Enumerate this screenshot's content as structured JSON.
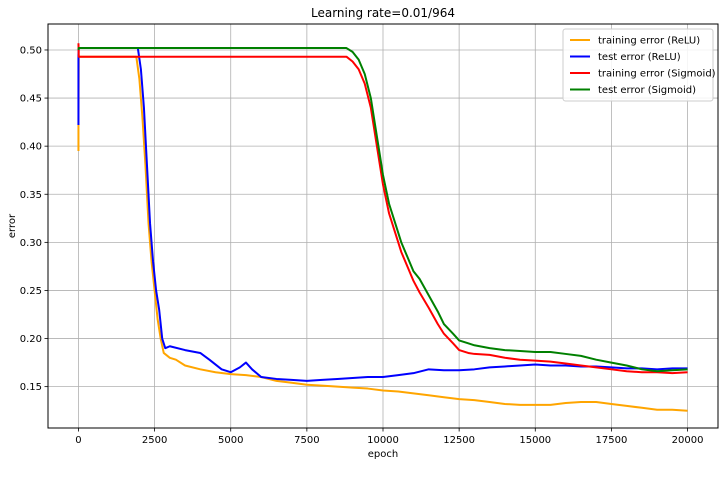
{
  "chart_data": {
    "type": "line",
    "title": "Learning rate=0.01/964",
    "xlabel": "epoch",
    "ylabel": "error",
    "xlim": [
      -1000,
      21000
    ],
    "ylim": [
      0.107,
      0.527
    ],
    "x_ticks": [
      0,
      2500,
      5000,
      7500,
      10000,
      12500,
      15000,
      17500,
      20000
    ],
    "y_ticks": [
      0.15,
      0.2,
      0.25,
      0.3,
      0.35,
      0.4,
      0.45,
      0.5
    ],
    "grid": true,
    "legend_position": "top-right",
    "series": [
      {
        "name": "training error (ReLU)",
        "color": "#ffa500",
        "points": [
          [
            0,
            0.395
          ],
          [
            0,
            0.42
          ],
          [
            10,
            0.493
          ],
          [
            1900,
            0.493
          ],
          [
            2000,
            0.47
          ],
          [
            2100,
            0.43
          ],
          [
            2200,
            0.38
          ],
          [
            2300,
            0.32
          ],
          [
            2400,
            0.28
          ],
          [
            2500,
            0.25
          ],
          [
            2600,
            0.22
          ],
          [
            2700,
            0.2
          ],
          [
            2800,
            0.185
          ],
          [
            3000,
            0.18
          ],
          [
            3200,
            0.178
          ],
          [
            3500,
            0.172
          ],
          [
            4000,
            0.168
          ],
          [
            4500,
            0.165
          ],
          [
            5000,
            0.163
          ],
          [
            5500,
            0.162
          ],
          [
            6000,
            0.16
          ],
          [
            6500,
            0.156
          ],
          [
            7000,
            0.154
          ],
          [
            7500,
            0.152
          ],
          [
            8000,
            0.151
          ],
          [
            8500,
            0.15
          ],
          [
            9000,
            0.149
          ],
          [
            9500,
            0.148
          ],
          [
            10000,
            0.146
          ],
          [
            10500,
            0.145
          ],
          [
            11000,
            0.143
          ],
          [
            11500,
            0.141
          ],
          [
            12000,
            0.139
          ],
          [
            12500,
            0.137
          ],
          [
            13000,
            0.136
          ],
          [
            13500,
            0.134
          ],
          [
            14000,
            0.132
          ],
          [
            14500,
            0.131
          ],
          [
            15000,
            0.131
          ],
          [
            15500,
            0.131
          ],
          [
            16000,
            0.133
          ],
          [
            16500,
            0.134
          ],
          [
            17000,
            0.134
          ],
          [
            17500,
            0.132
          ],
          [
            18000,
            0.13
          ],
          [
            18500,
            0.128
          ],
          [
            19000,
            0.126
          ],
          [
            19500,
            0.126
          ],
          [
            20000,
            0.125
          ]
        ]
      },
      {
        "name": "test error (ReLU)",
        "color": "#0000ff",
        "points": [
          [
            0,
            0.422
          ],
          [
            0,
            0.495
          ],
          [
            10,
            0.502
          ],
          [
            1950,
            0.502
          ],
          [
            2050,
            0.48
          ],
          [
            2150,
            0.44
          ],
          [
            2250,
            0.38
          ],
          [
            2350,
            0.32
          ],
          [
            2450,
            0.28
          ],
          [
            2550,
            0.25
          ],
          [
            2650,
            0.23
          ],
          [
            2750,
            0.2
          ],
          [
            2850,
            0.19
          ],
          [
            3000,
            0.192
          ],
          [
            3500,
            0.188
          ],
          [
            4000,
            0.185
          ],
          [
            4300,
            0.178
          ],
          [
            4700,
            0.168
          ],
          [
            5000,
            0.165
          ],
          [
            5300,
            0.17
          ],
          [
            5500,
            0.175
          ],
          [
            5700,
            0.168
          ],
          [
            6000,
            0.16
          ],
          [
            6500,
            0.158
          ],
          [
            7000,
            0.157
          ],
          [
            7500,
            0.156
          ],
          [
            8000,
            0.157
          ],
          [
            8500,
            0.158
          ],
          [
            9000,
            0.159
          ],
          [
            9500,
            0.16
          ],
          [
            10000,
            0.16
          ],
          [
            10500,
            0.162
          ],
          [
            11000,
            0.164
          ],
          [
            11500,
            0.168
          ],
          [
            12000,
            0.167
          ],
          [
            12500,
            0.167
          ],
          [
            13000,
            0.168
          ],
          [
            13500,
            0.17
          ],
          [
            14000,
            0.171
          ],
          [
            14500,
            0.172
          ],
          [
            15000,
            0.173
          ],
          [
            15500,
            0.172
          ],
          [
            16000,
            0.172
          ],
          [
            16500,
            0.171
          ],
          [
            17000,
            0.171
          ],
          [
            17500,
            0.17
          ],
          [
            18000,
            0.169
          ],
          [
            18500,
            0.169
          ],
          [
            19000,
            0.168
          ],
          [
            19500,
            0.169
          ],
          [
            20000,
            0.169
          ]
        ]
      },
      {
        "name": "training error (Sigmoid)",
        "color": "#ff0000",
        "points": [
          [
            0,
            0.507
          ],
          [
            10,
            0.493
          ],
          [
            8800,
            0.493
          ],
          [
            9000,
            0.488
          ],
          [
            9200,
            0.48
          ],
          [
            9400,
            0.465
          ],
          [
            9600,
            0.44
          ],
          [
            9800,
            0.4
          ],
          [
            10000,
            0.36
          ],
          [
            10200,
            0.33
          ],
          [
            10400,
            0.31
          ],
          [
            10600,
            0.29
          ],
          [
            10800,
            0.275
          ],
          [
            11000,
            0.26
          ],
          [
            11200,
            0.248
          ],
          [
            11500,
            0.232
          ],
          [
            11800,
            0.215
          ],
          [
            12000,
            0.205
          ],
          [
            12300,
            0.195
          ],
          [
            12500,
            0.188
          ],
          [
            12800,
            0.185
          ],
          [
            13000,
            0.184
          ],
          [
            13500,
            0.183
          ],
          [
            14000,
            0.18
          ],
          [
            14500,
            0.178
          ],
          [
            15000,
            0.177
          ],
          [
            15500,
            0.176
          ],
          [
            16000,
            0.174
          ],
          [
            16500,
            0.172
          ],
          [
            17000,
            0.17
          ],
          [
            17500,
            0.168
          ],
          [
            18000,
            0.166
          ],
          [
            18500,
            0.165
          ],
          [
            19000,
            0.165
          ],
          [
            19500,
            0.164
          ],
          [
            20000,
            0.165
          ]
        ]
      },
      {
        "name": "test error (Sigmoid)",
        "color": "#008000",
        "points": [
          [
            0,
            0.5
          ],
          [
            10,
            0.502
          ],
          [
            8800,
            0.502
          ],
          [
            9000,
            0.498
          ],
          [
            9200,
            0.49
          ],
          [
            9400,
            0.475
          ],
          [
            9600,
            0.45
          ],
          [
            9800,
            0.41
          ],
          [
            10000,
            0.37
          ],
          [
            10200,
            0.34
          ],
          [
            10400,
            0.32
          ],
          [
            10600,
            0.3
          ],
          [
            10800,
            0.285
          ],
          [
            11000,
            0.27
          ],
          [
            11200,
            0.262
          ],
          [
            11500,
            0.245
          ],
          [
            11800,
            0.228
          ],
          [
            12000,
            0.215
          ],
          [
            12300,
            0.205
          ],
          [
            12500,
            0.198
          ],
          [
            12800,
            0.195
          ],
          [
            13000,
            0.193
          ],
          [
            13500,
            0.19
          ],
          [
            14000,
            0.188
          ],
          [
            14500,
            0.187
          ],
          [
            15000,
            0.186
          ],
          [
            15500,
            0.186
          ],
          [
            16000,
            0.184
          ],
          [
            16500,
            0.182
          ],
          [
            17000,
            0.178
          ],
          [
            17500,
            0.175
          ],
          [
            18000,
            0.172
          ],
          [
            18500,
            0.168
          ],
          [
            19000,
            0.166
          ],
          [
            19500,
            0.167
          ],
          [
            20000,
            0.168
          ]
        ]
      }
    ]
  }
}
